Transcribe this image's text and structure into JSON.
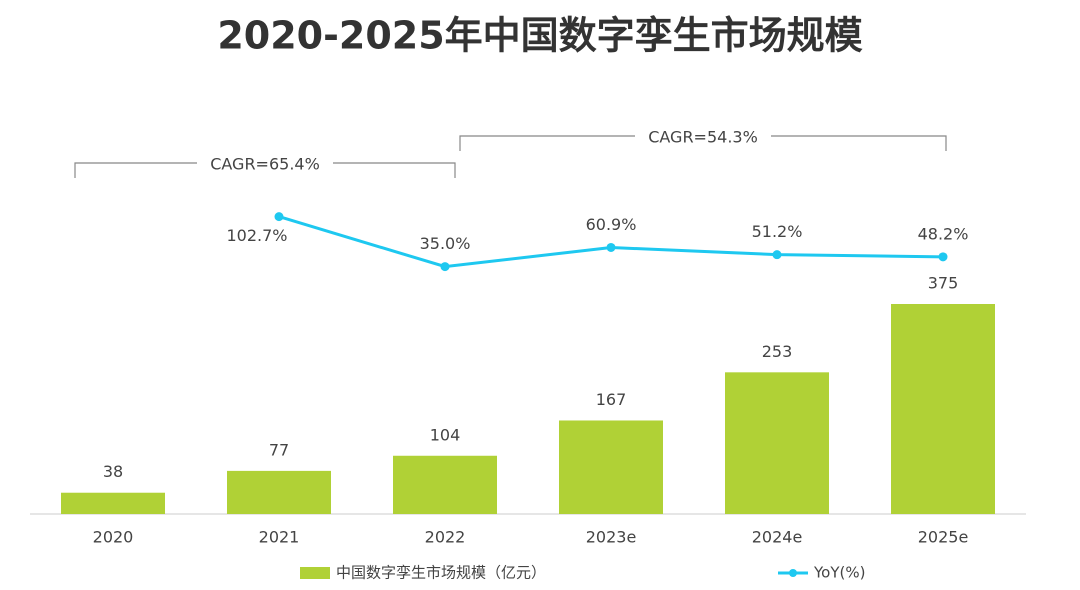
{
  "chart_data": {
    "type": "bar",
    "title": "2020-2025年中国数字孪生市场规模",
    "categories": [
      "2020",
      "2021",
      "2022",
      "2023e",
      "2024e",
      "2025e"
    ],
    "series": [
      {
        "name": "中国数字孪生市场规模（亿元）",
        "type": "bar",
        "color": "#b0d136",
        "values": [
          38,
          77,
          104,
          167,
          253,
          375
        ]
      },
      {
        "name": "YoY(%)",
        "type": "line",
        "axis": "y2",
        "color": "#1ec8f0",
        "values": [
          null,
          102.7,
          35.0,
          60.9,
          51.2,
          48.2
        ],
        "value_labels": [
          null,
          "102.7%",
          "35.0%",
          "60.9%",
          "51.2%",
          "48.2%"
        ]
      }
    ],
    "ylim": [
      0,
      600
    ],
    "y2lim": [
      -300,
      155
    ],
    "annotations": [
      "CAGR=65.4%",
      "CAGR=54.3%"
    ],
    "legend": "bottom"
  }
}
